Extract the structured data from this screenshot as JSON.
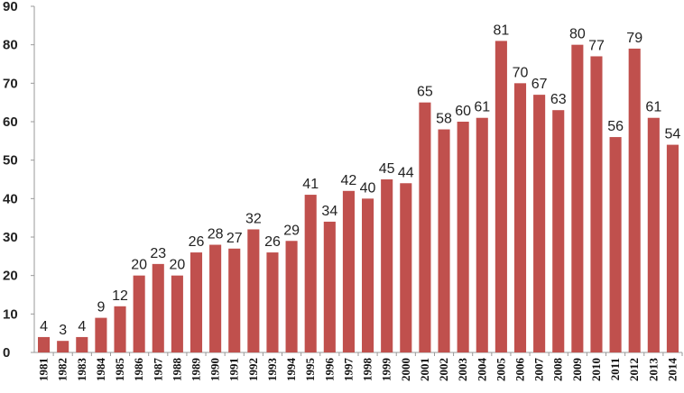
{
  "chart_data": {
    "type": "bar",
    "title": "",
    "xlabel": "",
    "ylabel": "",
    "ylim": [
      0,
      90
    ],
    "yticks": [
      0,
      10,
      20,
      30,
      40,
      50,
      60,
      70,
      80,
      90
    ],
    "grid": false,
    "legend": "none",
    "bar_color": "#c0504d",
    "categories": [
      "1981",
      "1982",
      "1983",
      "1984",
      "1985",
      "1986",
      "1987",
      "1988",
      "1989",
      "1990",
      "1991",
      "1992",
      "1993",
      "1994",
      "1995",
      "1996",
      "1997",
      "1998",
      "1999",
      "2000",
      "2001",
      "2002",
      "2003",
      "2004",
      "2005",
      "2006",
      "2007",
      "2008",
      "2009",
      "2010",
      "2011",
      "2012",
      "2013",
      "2014"
    ],
    "values": [
      4,
      3,
      4,
      9,
      12,
      20,
      23,
      20,
      26,
      28,
      27,
      32,
      26,
      29,
      41,
      34,
      42,
      40,
      45,
      44,
      65,
      58,
      60,
      61,
      81,
      70,
      67,
      63,
      80,
      77,
      56,
      79,
      61,
      54
    ]
  }
}
